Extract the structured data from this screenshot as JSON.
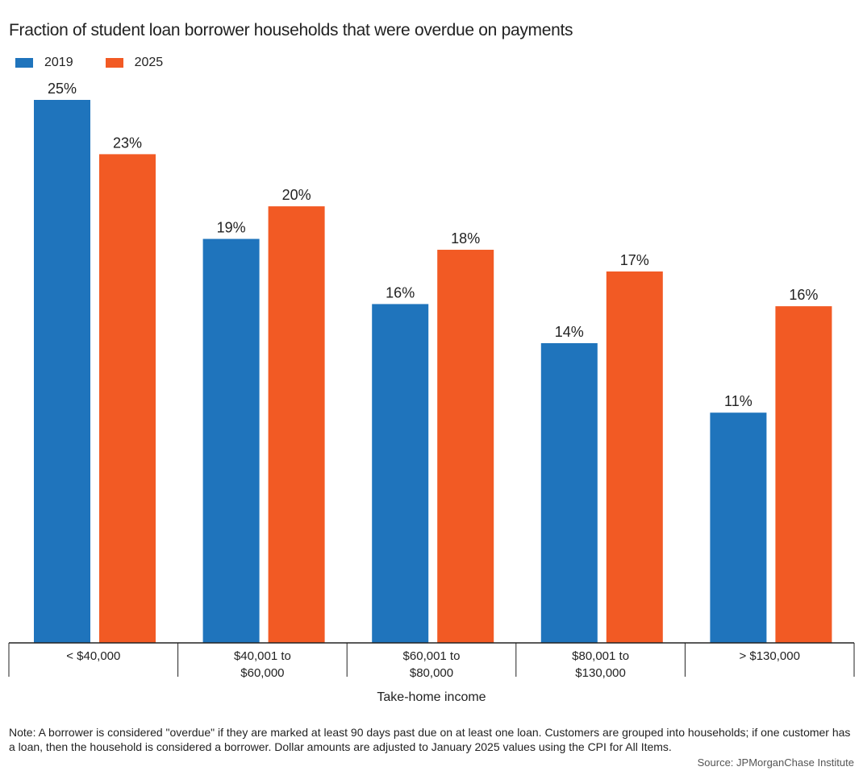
{
  "chart_data": {
    "type": "bar",
    "title": "Fraction of student loan borrower households that were overdue on payments",
    "xlabel": "Take-home income",
    "ylabel": "",
    "ylim": [
      0,
      25
    ],
    "grid": false,
    "legend_position": "top-left",
    "categories": [
      "< $40,000",
      "$40,001 to $60,000",
      "$60,001 to $80,000",
      "$80,001 to $130,000",
      "> $130,000"
    ],
    "category_lines": [
      [
        "< $40,000"
      ],
      [
        "$40,001 to",
        "$60,000"
      ],
      [
        "$60,001 to",
        "$80,000"
      ],
      [
        "$80,001 to",
        "$130,000"
      ],
      [
        "> $130,000"
      ]
    ],
    "series": [
      {
        "name": "2019",
        "color": "#1f74bc",
        "values": [
          25,
          18.6,
          15.6,
          13.8,
          10.6
        ],
        "labels": [
          "25%",
          "19%",
          "16%",
          "14%",
          "11%"
        ]
      },
      {
        "name": "2025",
        "color": "#f25a24",
        "values": [
          22.5,
          20.1,
          18.1,
          17.1,
          15.5
        ],
        "labels": [
          "23%",
          "20%",
          "18%",
          "17%",
          "16%"
        ]
      }
    ]
  },
  "note": "Note: A borrower is considered \"overdue\" if they are marked at least 90 days past due on at least one loan. Customers are grouped into households; if one customer has a loan, then the household is considered a borrower. Dollar amounts are adjusted to January 2025 values using the CPI for All Items.",
  "source": "Source: JPMorganChase Institute"
}
